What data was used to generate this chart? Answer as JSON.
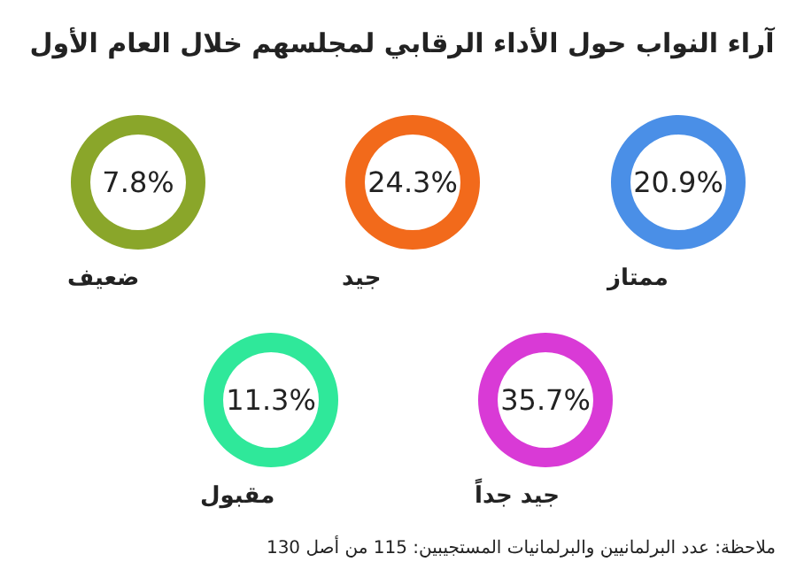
{
  "chart_data": {
    "type": "other",
    "title": "آراء النواب حول الأداء الرقابي لمجلسهم خلال العام الأول",
    "categories": [
      "ضعيف",
      "جيد",
      "ممتاز",
      "مقبول",
      "جيد جداً"
    ],
    "values": [
      7.8,
      24.3,
      20.9,
      11.3,
      35.7
    ],
    "value_labels": [
      "7.8%",
      "24.3%",
      "20.9%",
      "11.3%",
      "35.7%"
    ],
    "colors": [
      "#8aa62a",
      "#f26a1b",
      "#4a8fe7",
      "#2fe89a",
      "#d93ad6"
    ],
    "annotations": [
      "ملاحظة: عدد البرلمانيين والبرلمانيات المستجيبين: 115 من أصل 130"
    ]
  }
}
